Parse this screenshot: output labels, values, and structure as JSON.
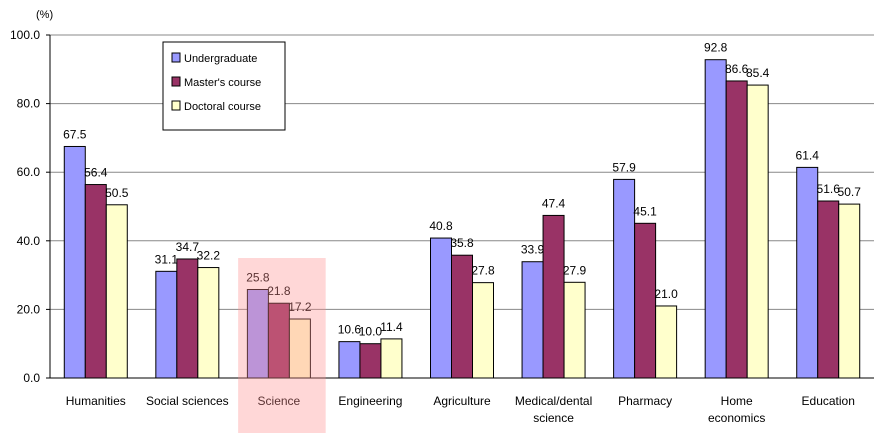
{
  "chart_data": {
    "type": "bar",
    "y_unit": "(%)",
    "categories": [
      "Humanities",
      "Social sciences",
      "Science",
      "Engineering",
      "Agriculture",
      "Medical/dental\nscience",
      "Pharmacy",
      "Home\neconomics",
      "Education"
    ],
    "series": [
      {
        "name": "Undergraduate",
        "color": "#9999ff",
        "values": [
          67.5,
          31.1,
          25.8,
          10.6,
          40.8,
          33.9,
          57.9,
          92.8,
          61.4
        ],
        "value_labels": [
          "67.5",
          "31.1",
          "25.8",
          "10.6",
          "40.8",
          "33.9",
          "57.9",
          "92.8",
          "61.4"
        ]
      },
      {
        "name": "Master's course",
        "color": "#993366",
        "values": [
          56.4,
          34.7,
          21.8,
          10.0,
          35.8,
          47.4,
          45.1,
          86.6,
          51.6
        ],
        "value_labels": [
          "56.4",
          "34.7",
          "21.8",
          "10.0",
          "35.8",
          "47.4",
          "45.1",
          "86.6",
          "51.6"
        ]
      },
      {
        "name": "Doctoral course",
        "color": "#ffffcc",
        "values": [
          50.5,
          32.2,
          17.2,
          11.4,
          27.8,
          27.9,
          21.0,
          85.4,
          50.7
        ],
        "value_labels": [
          "50.5",
          "32.2",
          "17.2",
          "11.4",
          "27.8",
          "27.9",
          "21.0",
          "85.4",
          "50.7"
        ]
      }
    ],
    "ylim": [
      0,
      100
    ],
    "yticks": [
      {
        "value": 0,
        "label": "0.0"
      },
      {
        "value": 20,
        "label": "20.0"
      },
      {
        "value": 40,
        "label": "40.0"
      },
      {
        "value": 60,
        "label": "60.0"
      },
      {
        "value": 80,
        "label": "80.0"
      },
      {
        "value": 100,
        "label": "100.0"
      }
    ],
    "grid": true,
    "legend": "upper-left"
  }
}
